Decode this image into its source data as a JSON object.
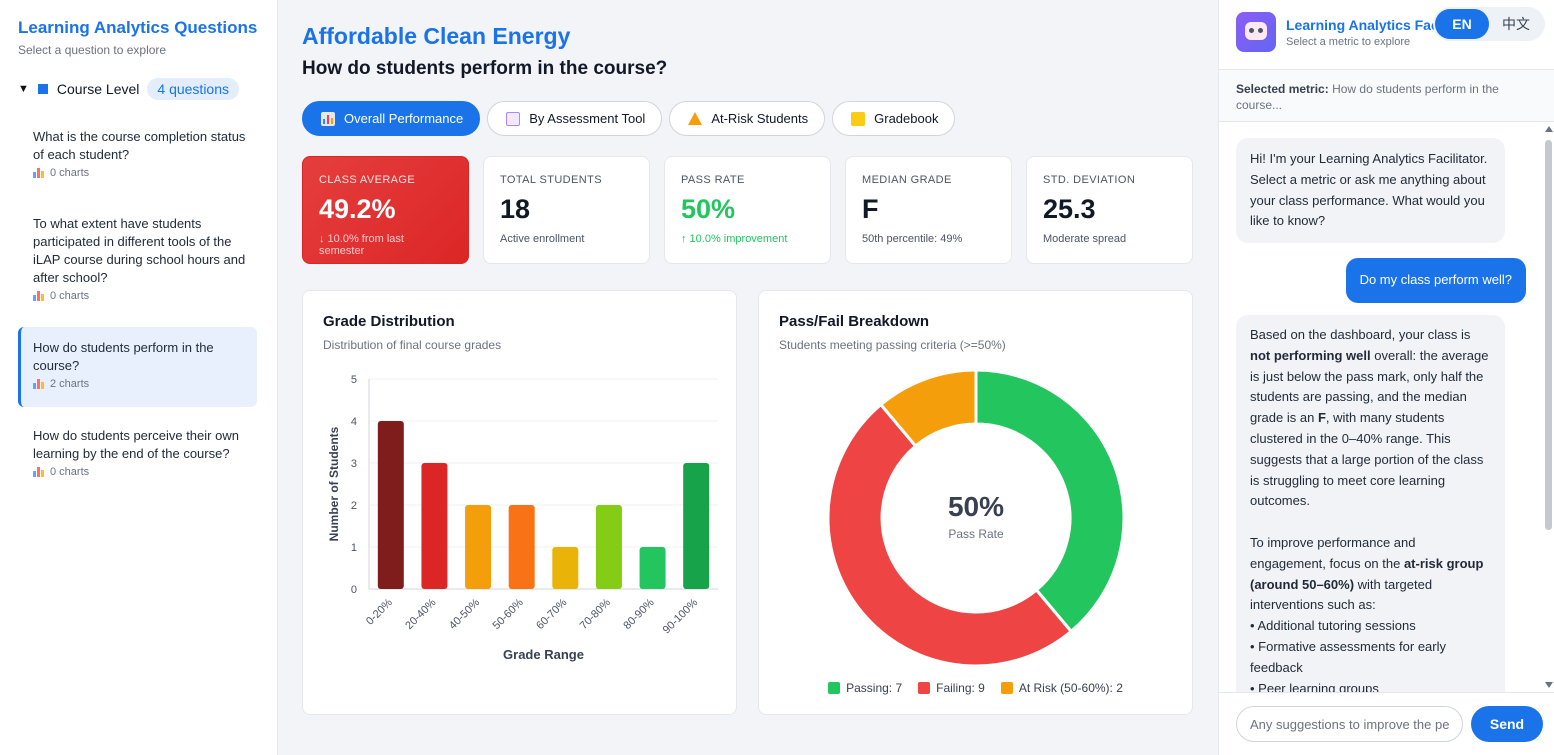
{
  "sidebar": {
    "title": "Learning Analytics Questions",
    "subtitle": "Select a question to explore",
    "section_label": "Course Level",
    "section_badge": "4 questions",
    "questions": [
      {
        "text": "What is the course completion status of each student?",
        "meta": "0 charts"
      },
      {
        "text": "To what extent have students participated in different tools of the iLAP course during school hours and after school?",
        "meta": "0 charts"
      },
      {
        "text": "How do students perform in the course?",
        "meta": "2 charts"
      },
      {
        "text": "How do students perceive their own learning by the end of the course?",
        "meta": "0 charts"
      }
    ]
  },
  "main": {
    "title": "Affordable Clean Energy",
    "question": "How do students perform in the course?",
    "tabs": [
      {
        "label": "Overall Performance",
        "icon": "bar-chart-icon"
      },
      {
        "label": "By Assessment Tool",
        "icon": "clipboard-icon"
      },
      {
        "label": "At-Risk Students",
        "icon": "warning-icon"
      },
      {
        "label": "Gradebook",
        "icon": "notebook-icon"
      }
    ],
    "stats": [
      {
        "label": "CLASS AVERAGE",
        "value": "49.2%",
        "note": "↓ 10.0% from last semester"
      },
      {
        "label": "TOTAL STUDENTS",
        "value": "18",
        "note": "Active enrollment"
      },
      {
        "label": "PASS RATE",
        "value": "50%",
        "note": "↑ 10.0% improvement"
      },
      {
        "label": "MEDIAN GRADE",
        "value": "F",
        "note": "50th percentile: 49%"
      },
      {
        "label": "STD. DEVIATION",
        "value": "25.3",
        "note": "Moderate spread"
      }
    ],
    "grade_card": {
      "title": "Grade Distribution",
      "subtitle": "Distribution of final course grades"
    },
    "pass_card": {
      "title": "Pass/Fail Breakdown",
      "subtitle": "Students meeting passing criteria (>=50%)",
      "center_value": "50%",
      "center_label": "Pass Rate"
    }
  },
  "chart_data": [
    {
      "type": "bar",
      "categories": [
        "0-20%",
        "20-40%",
        "40-50%",
        "50-60%",
        "60-70%",
        "70-80%",
        "80-90%",
        "90-100%"
      ],
      "values": [
        4,
        3,
        2,
        2,
        1,
        2,
        1,
        3
      ],
      "colors": [
        "#7f1d1d",
        "#dc2626",
        "#f59e0b",
        "#f97316",
        "#eab308",
        "#84cc16",
        "#22c55e",
        "#16a34a"
      ],
      "xlabel": "Grade Range",
      "ylabel": "Number of Students",
      "ylim": [
        0,
        5
      ],
      "yticks": [
        "0",
        "1",
        "2",
        "3",
        "4",
        "5"
      ],
      "grid": true
    },
    {
      "type": "pie",
      "labels": [
        "Passing: 7",
        "Failing: 9",
        "At Risk (50-60%): 2"
      ],
      "values": [
        7,
        9,
        2
      ],
      "colors": [
        "#22c55e",
        "#ef4444",
        "#f59e0b"
      ],
      "legend": "bottom"
    }
  ],
  "chat": {
    "title": "Learning Analytics Facilitator",
    "subtitle": "Select a metric to explore",
    "lang_en": "EN",
    "lang_zh": "中文",
    "selected_label": "Selected metric:",
    "selected_value": "How do students perform in the course...",
    "bot_msg1": "Hi! I'm your Learning Analytics Facilitator. Select a metric or ask me anything about your class performance. What would you like to know?",
    "user_msg": "Do my class perform well?",
    "bot_msg2": {
      "p1_a": "Based on the dashboard, your class is ",
      "p1_b": "not performing well",
      "p1_c": " overall: the average is just below the pass mark, only half the students are passing, and the median grade is an ",
      "p1_d": "F",
      "p1_e": ", with many students clustered in the 0–40% range. This suggests that a large portion of the class is struggling to meet core learning outcomes.",
      "p2_a": "To improve performance and engagement, focus on the ",
      "p2_b": "at-risk group (around 50–60%)",
      "p2_c": " with targeted interventions such as:",
      "bullets": [
        "• Additional tutoring sessions",
        "• Formative assessments for early feedback",
        "• Peer learning groups"
      ]
    },
    "input_placeholder": "Any suggestions to improve the performance?",
    "send_label": "Send"
  }
}
